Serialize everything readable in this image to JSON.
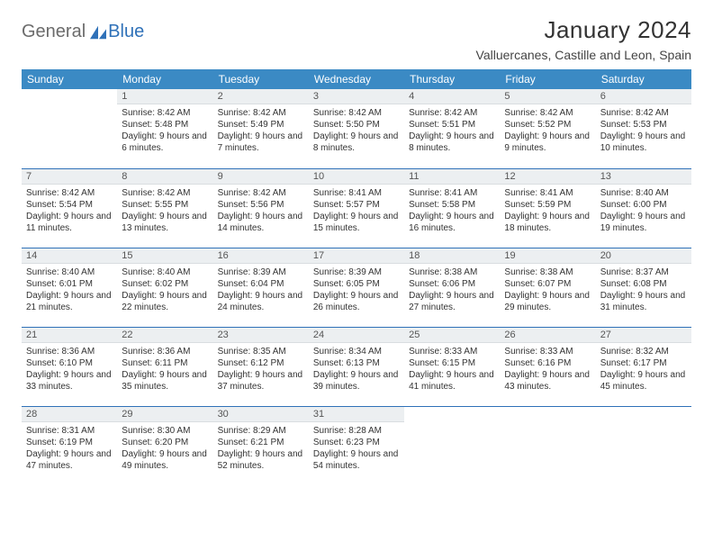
{
  "logo": {
    "part1": "General",
    "part2": "Blue"
  },
  "title": "January 2024",
  "location": "Valluercanes, Castille and Leon, Spain",
  "colors": {
    "header_bg": "#3b8ac4",
    "header_text": "#ffffff",
    "rule": "#2f71b8",
    "daynum_bg": "#eceff1",
    "logo_gray": "#6b6b6b",
    "logo_blue": "#2f71b8"
  },
  "weekdays": [
    "Sunday",
    "Monday",
    "Tuesday",
    "Wednesday",
    "Thursday",
    "Friday",
    "Saturday"
  ],
  "weeks": [
    [
      {
        "n": "",
        "sunrise": "",
        "sunset": "",
        "daylight": ""
      },
      {
        "n": "1",
        "sunrise": "Sunrise: 8:42 AM",
        "sunset": "Sunset: 5:48 PM",
        "daylight": "Daylight: 9 hours and 6 minutes."
      },
      {
        "n": "2",
        "sunrise": "Sunrise: 8:42 AM",
        "sunset": "Sunset: 5:49 PM",
        "daylight": "Daylight: 9 hours and 7 minutes."
      },
      {
        "n": "3",
        "sunrise": "Sunrise: 8:42 AM",
        "sunset": "Sunset: 5:50 PM",
        "daylight": "Daylight: 9 hours and 8 minutes."
      },
      {
        "n": "4",
        "sunrise": "Sunrise: 8:42 AM",
        "sunset": "Sunset: 5:51 PM",
        "daylight": "Daylight: 9 hours and 8 minutes."
      },
      {
        "n": "5",
        "sunrise": "Sunrise: 8:42 AM",
        "sunset": "Sunset: 5:52 PM",
        "daylight": "Daylight: 9 hours and 9 minutes."
      },
      {
        "n": "6",
        "sunrise": "Sunrise: 8:42 AM",
        "sunset": "Sunset: 5:53 PM",
        "daylight": "Daylight: 9 hours and 10 minutes."
      }
    ],
    [
      {
        "n": "7",
        "sunrise": "Sunrise: 8:42 AM",
        "sunset": "Sunset: 5:54 PM",
        "daylight": "Daylight: 9 hours and 11 minutes."
      },
      {
        "n": "8",
        "sunrise": "Sunrise: 8:42 AM",
        "sunset": "Sunset: 5:55 PM",
        "daylight": "Daylight: 9 hours and 13 minutes."
      },
      {
        "n": "9",
        "sunrise": "Sunrise: 8:42 AM",
        "sunset": "Sunset: 5:56 PM",
        "daylight": "Daylight: 9 hours and 14 minutes."
      },
      {
        "n": "10",
        "sunrise": "Sunrise: 8:41 AM",
        "sunset": "Sunset: 5:57 PM",
        "daylight": "Daylight: 9 hours and 15 minutes."
      },
      {
        "n": "11",
        "sunrise": "Sunrise: 8:41 AM",
        "sunset": "Sunset: 5:58 PM",
        "daylight": "Daylight: 9 hours and 16 minutes."
      },
      {
        "n": "12",
        "sunrise": "Sunrise: 8:41 AM",
        "sunset": "Sunset: 5:59 PM",
        "daylight": "Daylight: 9 hours and 18 minutes."
      },
      {
        "n": "13",
        "sunrise": "Sunrise: 8:40 AM",
        "sunset": "Sunset: 6:00 PM",
        "daylight": "Daylight: 9 hours and 19 minutes."
      }
    ],
    [
      {
        "n": "14",
        "sunrise": "Sunrise: 8:40 AM",
        "sunset": "Sunset: 6:01 PM",
        "daylight": "Daylight: 9 hours and 21 minutes."
      },
      {
        "n": "15",
        "sunrise": "Sunrise: 8:40 AM",
        "sunset": "Sunset: 6:02 PM",
        "daylight": "Daylight: 9 hours and 22 minutes."
      },
      {
        "n": "16",
        "sunrise": "Sunrise: 8:39 AM",
        "sunset": "Sunset: 6:04 PM",
        "daylight": "Daylight: 9 hours and 24 minutes."
      },
      {
        "n": "17",
        "sunrise": "Sunrise: 8:39 AM",
        "sunset": "Sunset: 6:05 PM",
        "daylight": "Daylight: 9 hours and 26 minutes."
      },
      {
        "n": "18",
        "sunrise": "Sunrise: 8:38 AM",
        "sunset": "Sunset: 6:06 PM",
        "daylight": "Daylight: 9 hours and 27 minutes."
      },
      {
        "n": "19",
        "sunrise": "Sunrise: 8:38 AM",
        "sunset": "Sunset: 6:07 PM",
        "daylight": "Daylight: 9 hours and 29 minutes."
      },
      {
        "n": "20",
        "sunrise": "Sunrise: 8:37 AM",
        "sunset": "Sunset: 6:08 PM",
        "daylight": "Daylight: 9 hours and 31 minutes."
      }
    ],
    [
      {
        "n": "21",
        "sunrise": "Sunrise: 8:36 AM",
        "sunset": "Sunset: 6:10 PM",
        "daylight": "Daylight: 9 hours and 33 minutes."
      },
      {
        "n": "22",
        "sunrise": "Sunrise: 8:36 AM",
        "sunset": "Sunset: 6:11 PM",
        "daylight": "Daylight: 9 hours and 35 minutes."
      },
      {
        "n": "23",
        "sunrise": "Sunrise: 8:35 AM",
        "sunset": "Sunset: 6:12 PM",
        "daylight": "Daylight: 9 hours and 37 minutes."
      },
      {
        "n": "24",
        "sunrise": "Sunrise: 8:34 AM",
        "sunset": "Sunset: 6:13 PM",
        "daylight": "Daylight: 9 hours and 39 minutes."
      },
      {
        "n": "25",
        "sunrise": "Sunrise: 8:33 AM",
        "sunset": "Sunset: 6:15 PM",
        "daylight": "Daylight: 9 hours and 41 minutes."
      },
      {
        "n": "26",
        "sunrise": "Sunrise: 8:33 AM",
        "sunset": "Sunset: 6:16 PM",
        "daylight": "Daylight: 9 hours and 43 minutes."
      },
      {
        "n": "27",
        "sunrise": "Sunrise: 8:32 AM",
        "sunset": "Sunset: 6:17 PM",
        "daylight": "Daylight: 9 hours and 45 minutes."
      }
    ],
    [
      {
        "n": "28",
        "sunrise": "Sunrise: 8:31 AM",
        "sunset": "Sunset: 6:19 PM",
        "daylight": "Daylight: 9 hours and 47 minutes."
      },
      {
        "n": "29",
        "sunrise": "Sunrise: 8:30 AM",
        "sunset": "Sunset: 6:20 PM",
        "daylight": "Daylight: 9 hours and 49 minutes."
      },
      {
        "n": "30",
        "sunrise": "Sunrise: 8:29 AM",
        "sunset": "Sunset: 6:21 PM",
        "daylight": "Daylight: 9 hours and 52 minutes."
      },
      {
        "n": "31",
        "sunrise": "Sunrise: 8:28 AM",
        "sunset": "Sunset: 6:23 PM",
        "daylight": "Daylight: 9 hours and 54 minutes."
      },
      {
        "n": "",
        "sunrise": "",
        "sunset": "",
        "daylight": ""
      },
      {
        "n": "",
        "sunrise": "",
        "sunset": "",
        "daylight": ""
      },
      {
        "n": "",
        "sunrise": "",
        "sunset": "",
        "daylight": ""
      }
    ]
  ]
}
